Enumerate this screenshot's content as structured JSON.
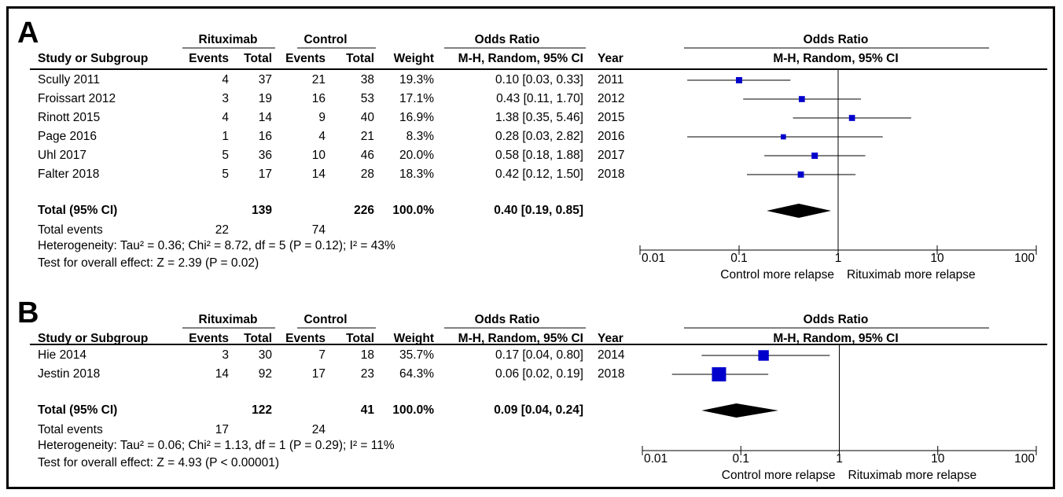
{
  "chart_data": [
    {
      "type": "forest",
      "panel": "A",
      "group_labels": {
        "experimental": "Rituximab",
        "control": "Control",
        "or_header": "Odds Ratio",
        "plot_header": "Odds Ratio"
      },
      "columns": {
        "study": "Study or Subgroup",
        "events": "Events",
        "total": "Total",
        "weight": "Weight",
        "ci": "M-H, Random, 95% CI",
        "year": "Year",
        "plot_sub": "M-H, Random, 95% CI"
      },
      "studies": [
        {
          "name": "Scully 2011",
          "e_events": "4",
          "e_total": "37",
          "c_events": "21",
          "c_total": "38",
          "weight": "19.3%",
          "ci_text": "0.10 [0.03, 0.33]",
          "year": "2011",
          "or": 0.1,
          "lo": 0.03,
          "hi": 0.33,
          "w": 19.3
        },
        {
          "name": "Froissart 2012",
          "e_events": "3",
          "e_total": "19",
          "c_events": "16",
          "c_total": "53",
          "weight": "17.1%",
          "ci_text": "0.43 [0.11, 1.70]",
          "year": "2012",
          "or": 0.43,
          "lo": 0.11,
          "hi": 1.7,
          "w": 17.1
        },
        {
          "name": "Rinott 2015",
          "e_events": "4",
          "e_total": "14",
          "c_events": "9",
          "c_total": "40",
          "weight": "16.9%",
          "ci_text": "1.38 [0.35, 5.46]",
          "year": "2015",
          "or": 1.38,
          "lo": 0.35,
          "hi": 5.46,
          "w": 16.9
        },
        {
          "name": "Page 2016",
          "e_events": "1",
          "e_total": "16",
          "c_events": "4",
          "c_total": "21",
          "weight": "8.3%",
          "ci_text": "0.28 [0.03, 2.82]",
          "year": "2016",
          "or": 0.28,
          "lo": 0.03,
          "hi": 2.82,
          "w": 8.3
        },
        {
          "name": "Uhl 2017",
          "e_events": "5",
          "e_total": "36",
          "c_events": "10",
          "c_total": "46",
          "weight": "20.0%",
          "ci_text": "0.58 [0.18, 1.88]",
          "year": "2017",
          "or": 0.58,
          "lo": 0.18,
          "hi": 1.88,
          "w": 20.0
        },
        {
          "name": "Falter 2018",
          "e_events": "5",
          "e_total": "17",
          "c_events": "14",
          "c_total": "28",
          "weight": "18.3%",
          "ci_text": "0.42 [0.12, 1.50]",
          "year": "2018",
          "or": 0.42,
          "lo": 0.12,
          "hi": 1.5,
          "w": 18.3
        }
      ],
      "total": {
        "label": "Total (95% CI)",
        "e_total": "139",
        "c_total": "226",
        "weight": "100.0%",
        "ci_text": "0.40 [0.19, 0.85]",
        "or": 0.4,
        "lo": 0.19,
        "hi": 0.85
      },
      "events_row": {
        "label": "Total events",
        "e_events": "22",
        "c_events": "74"
      },
      "heterogeneity": "Heterogeneity: Tau² = 0.36; Chi² = 8.72, df = 5 (P = 0.12); I² = 43%",
      "overall": "Test for overall effect: Z = 2.39 (P = 0.02)",
      "axis": {
        "scale": "log",
        "ticks": [
          "0.01",
          "0.1",
          "1",
          "10",
          "100"
        ],
        "tick_values": [
          0.01,
          0.1,
          1,
          10,
          100
        ],
        "left_label": "Control more relapse",
        "right_label": "Rituximab more relapse"
      }
    },
    {
      "type": "forest",
      "panel": "B",
      "group_labels": {
        "experimental": "Rituximab",
        "control": "Control",
        "or_header": "Odds Ratio",
        "plot_header": "Odds Ratio"
      },
      "columns": {
        "study": "Study or Subgroup",
        "events": "Events",
        "total": "Total",
        "weight": "Weight",
        "ci": "M-H, Random, 95% CI",
        "year": "Year",
        "plot_sub": "M-H, Random, 95% CI"
      },
      "studies": [
        {
          "name": "Hie 2014",
          "e_events": "3",
          "e_total": "30",
          "c_events": "7",
          "c_total": "18",
          "weight": "35.7%",
          "ci_text": "0.17 [0.04, 0.80]",
          "year": "2014",
          "or": 0.17,
          "lo": 0.04,
          "hi": 0.8,
          "w": 35.7
        },
        {
          "name": "Jestin 2018",
          "e_events": "14",
          "e_total": "92",
          "c_events": "17",
          "c_total": "23",
          "weight": "64.3%",
          "ci_text": "0.06 [0.02, 0.19]",
          "year": "2018",
          "or": 0.06,
          "lo": 0.02,
          "hi": 0.19,
          "w": 64.3
        }
      ],
      "total": {
        "label": "Total (95% CI)",
        "e_total": "122",
        "c_total": "41",
        "weight": "100.0%",
        "ci_text": "0.09 [0.04, 0.24]",
        "or": 0.09,
        "lo": 0.04,
        "hi": 0.24
      },
      "events_row": {
        "label": "Total events",
        "e_events": "17",
        "c_events": "24"
      },
      "heterogeneity": "Heterogeneity: Tau² = 0.06; Chi² = 1.13, df = 1 (P = 0.29); I² = 11%",
      "overall": "Test for overall effect: Z = 4.93 (P < 0.00001)",
      "axis": {
        "scale": "log",
        "ticks": [
          "0.01",
          "0.1",
          "1",
          "10",
          "100"
        ],
        "tick_values": [
          0.01,
          0.1,
          1,
          10,
          100
        ],
        "left_label": "Control more relapse",
        "right_label": "Rituximab more relapse"
      }
    }
  ],
  "colors": {
    "point": "#0000cc",
    "line": "#000000",
    "diamond": "#000000"
  }
}
